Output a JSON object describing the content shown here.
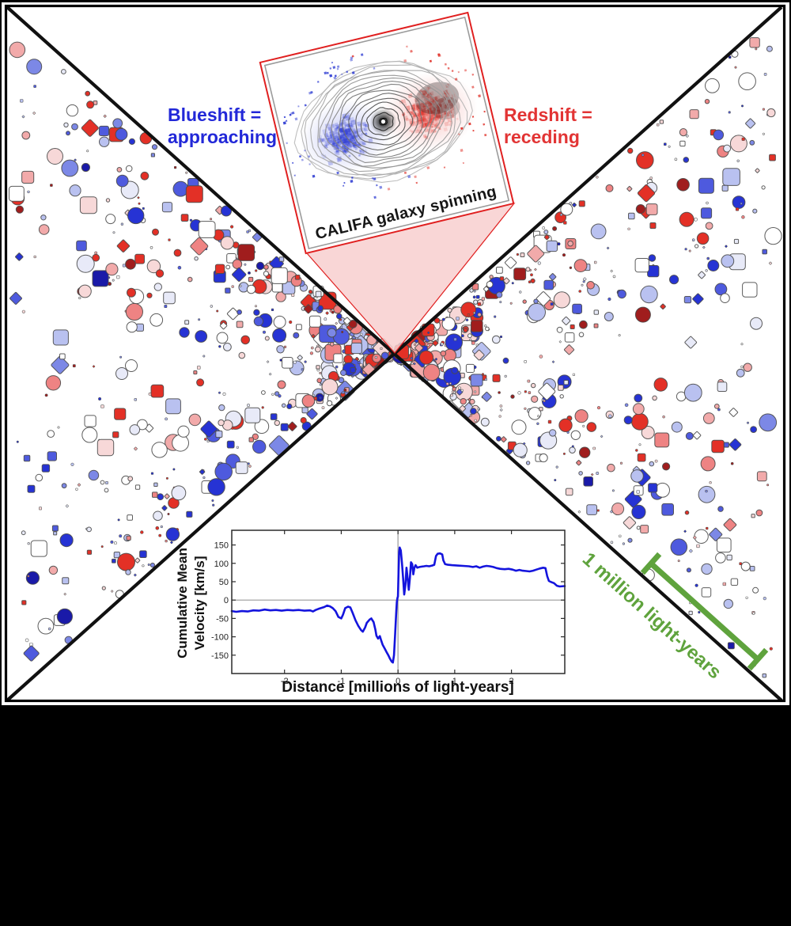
{
  "canvas": {
    "background": "#000000",
    "page_background": "#ffffff",
    "frame_color": "#000000",
    "diagonal_color": "#111111"
  },
  "labels": {
    "blueshift": {
      "line1": "Blueshift =",
      "line2": "approaching",
      "color": "#2228d8"
    },
    "redshift": {
      "line1": "Redshift =",
      "line2": "receding",
      "color": "#e23434"
    }
  },
  "scalebar": {
    "text": "1 million light-years",
    "color": "#5fa33d"
  },
  "galaxy": {
    "caption": "CALIFA galaxy spinning",
    "caption_color": "#161616",
    "border_color": "#e02020",
    "inner_border_color": "#9b9b9b",
    "blue_color": "#2d3bd2",
    "red_color": "#e03028",
    "contour_outer_color": "#bababa",
    "contour_inner_color": "#303030",
    "center_dot_color": "#ffffff",
    "seed": 77,
    "speckle_count": 85,
    "blue_cloud_count": 270,
    "red_cloud_count": 300
  },
  "callout": {
    "fill": "#f8cfcf",
    "opacity": 0.85,
    "border_color": "#e02020"
  },
  "scatter": {
    "seed": 1234,
    "count": 1280,
    "stroke_color": "#4a4a4a",
    "shapes": {
      "circle": 0.6,
      "square": 0.28,
      "diamond": 0.12
    },
    "palette": [
      {
        "color": "#2633d4",
        "w": 12
      },
      {
        "color": "#4e5ade",
        "w": 8
      },
      {
        "color": "#7c88e6",
        "w": 6
      },
      {
        "color": "#b9c1f0",
        "w": 9
      },
      {
        "color": "#e8eaf8",
        "w": 8
      },
      {
        "color": "#ffffff",
        "w": 16
      },
      {
        "color": "#f7d8d8",
        "w": 9
      },
      {
        "color": "#f2aaaa",
        "w": 7
      },
      {
        "color": "#ee8383",
        "w": 6
      },
      {
        "color": "#e33026",
        "w": 13
      },
      {
        "color": "#a01d1d",
        "w": 4
      },
      {
        "color": "#1a1aa8",
        "w": 2
      }
    ]
  },
  "chart_data": {
    "type": "line",
    "title": "",
    "xlabel": "Distance [millions of light-years]",
    "ylabel_line1": "Cumulative Mean",
    "ylabel_line2": "Velocity [km/s]",
    "xlim": [
      -2.93,
      2.94
    ],
    "ylim": [
      -200,
      190
    ],
    "xticks": [
      -2,
      -1,
      0,
      1,
      2
    ],
    "yticks": [
      150,
      100,
      50,
      0,
      -50,
      -100,
      -150
    ],
    "grid": false,
    "legend": "none",
    "line_color": "#1414dd",
    "axis_color": "#2a2a2a",
    "zero_line_color": "#9a9a9a",
    "series": [
      {
        "name": "cumulative mean velocity",
        "points": [
          [
            -2.93,
            -30
          ],
          [
            -2.85,
            -32
          ],
          [
            -2.75,
            -30
          ],
          [
            -2.65,
            -31
          ],
          [
            -2.55,
            -28
          ],
          [
            -2.45,
            -29
          ],
          [
            -2.35,
            -26
          ],
          [
            -2.25,
            -28
          ],
          [
            -2.15,
            -27
          ],
          [
            -2.05,
            -29
          ],
          [
            -1.95,
            -27
          ],
          [
            -1.85,
            -28
          ],
          [
            -1.75,
            -27
          ],
          [
            -1.65,
            -29
          ],
          [
            -1.55,
            -28
          ],
          [
            -1.5,
            -31
          ],
          [
            -1.45,
            -27
          ],
          [
            -1.4,
            -24
          ],
          [
            -1.3,
            -19
          ],
          [
            -1.25,
            -15
          ],
          [
            -1.2,
            -17
          ],
          [
            -1.15,
            -22
          ],
          [
            -1.1,
            -30
          ],
          [
            -1.05,
            -46
          ],
          [
            -1.0,
            -50
          ],
          [
            -0.97,
            -40
          ],
          [
            -0.93,
            -22
          ],
          [
            -0.88,
            -18
          ],
          [
            -0.84,
            -20
          ],
          [
            -0.8,
            -35
          ],
          [
            -0.75,
            -55
          ],
          [
            -0.7,
            -70
          ],
          [
            -0.65,
            -82
          ],
          [
            -0.62,
            -86
          ],
          [
            -0.58,
            -75
          ],
          [
            -0.55,
            -62
          ],
          [
            -0.5,
            -53
          ],
          [
            -0.47,
            -50
          ],
          [
            -0.43,
            -60
          ],
          [
            -0.4,
            -80
          ],
          [
            -0.38,
            -97
          ],
          [
            -0.35,
            -105
          ],
          [
            -0.32,
            -98
          ],
          [
            -0.3,
            -108
          ],
          [
            -0.27,
            -122
          ],
          [
            -0.23,
            -133
          ],
          [
            -0.2,
            -142
          ],
          [
            -0.17,
            -150
          ],
          [
            -0.14,
            -160
          ],
          [
            -0.11,
            -168
          ],
          [
            -0.09,
            -170
          ],
          [
            -0.07,
            -150
          ],
          [
            -0.05,
            -90
          ],
          [
            -0.03,
            -30
          ],
          [
            -0.02,
            -5
          ],
          [
            -0.01,
            5
          ],
          [
            0.0,
            10
          ],
          [
            0.01,
            80
          ],
          [
            0.02,
            130
          ],
          [
            0.03,
            143
          ],
          [
            0.05,
            135
          ],
          [
            0.07,
            100
          ],
          [
            0.09,
            60
          ],
          [
            0.11,
            15
          ],
          [
            0.13,
            40
          ],
          [
            0.15,
            88
          ],
          [
            0.17,
            60
          ],
          [
            0.19,
            28
          ],
          [
            0.21,
            60
          ],
          [
            0.23,
            103
          ],
          [
            0.25,
            98
          ],
          [
            0.27,
            70
          ],
          [
            0.29,
            88
          ],
          [
            0.31,
            95
          ],
          [
            0.34,
            88
          ],
          [
            0.38,
            90
          ],
          [
            0.42,
            91
          ],
          [
            0.46,
            92
          ],
          [
            0.5,
            93
          ],
          [
            0.55,
            92
          ],
          [
            0.6,
            94
          ],
          [
            0.64,
            96
          ],
          [
            0.67,
            120
          ],
          [
            0.7,
            126
          ],
          [
            0.74,
            127
          ],
          [
            0.78,
            124
          ],
          [
            0.8,
            108
          ],
          [
            0.83,
            98
          ],
          [
            0.88,
            96
          ],
          [
            0.95,
            95
          ],
          [
            1.05,
            94
          ],
          [
            1.15,
            93
          ],
          [
            1.25,
            92
          ],
          [
            1.32,
            90
          ],
          [
            1.38,
            92
          ],
          [
            1.44,
            88
          ],
          [
            1.5,
            91
          ],
          [
            1.56,
            93
          ],
          [
            1.62,
            92
          ],
          [
            1.68,
            90
          ],
          [
            1.74,
            87
          ],
          [
            1.8,
            85
          ],
          [
            1.88,
            84
          ],
          [
            1.95,
            85
          ],
          [
            2.02,
            83
          ],
          [
            2.08,
            80
          ],
          [
            2.14,
            82
          ],
          [
            2.2,
            80
          ],
          [
            2.26,
            79
          ],
          [
            2.32,
            78
          ],
          [
            2.38,
            80
          ],
          [
            2.44,
            83
          ],
          [
            2.5,
            86
          ],
          [
            2.56,
            88
          ],
          [
            2.6,
            87
          ],
          [
            2.63,
            65
          ],
          [
            2.66,
            52
          ],
          [
            2.7,
            49
          ],
          [
            2.75,
            46
          ],
          [
            2.8,
            39
          ],
          [
            2.85,
            37
          ],
          [
            2.94,
            38
          ]
        ]
      }
    ]
  }
}
